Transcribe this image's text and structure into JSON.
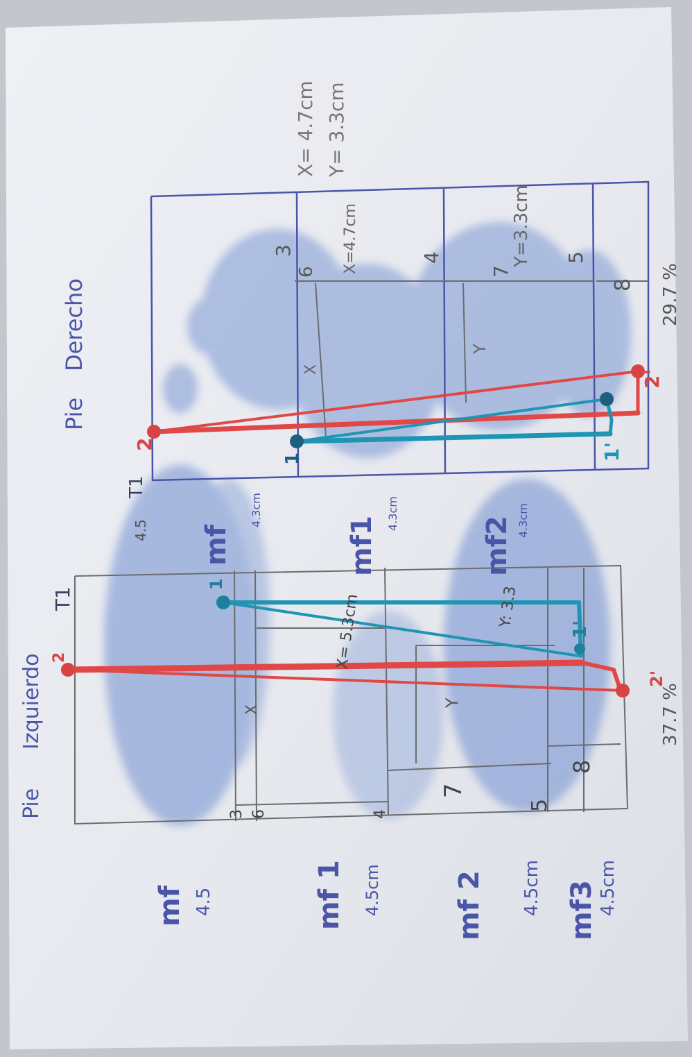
{
  "labels": {
    "left_title_pie": "Pie",
    "left_title_side": "Izquierdo",
    "right_title_pie": "Pie",
    "right_title_side": "Derecho",
    "t1_left": "T1",
    "t1_right": "T1",
    "top_value": "4.5",
    "left_percent": "37.7 %",
    "right_percent": "29.7 %",
    "xy_right": "X= 4.7cm",
    "y_right": "Y= 3.3cm",
    "xy_right_mid": "X=4.7cm",
    "y_right_mid": "Y=3.3cm",
    "left_hyp": "X= 5.3cm",
    "left_y": "Y: 3.3",
    "x_letter": "X",
    "y_letter": "Y"
  },
  "left_measures": [
    {
      "name": "mf",
      "value": "4.5"
    },
    {
      "name": "mf 1",
      "value": "4.5cm"
    },
    {
      "name": "mf 2",
      "value": "4.5cm"
    },
    {
      "name": "mf3",
      "value": "4.5cm"
    }
  ],
  "right_measures": [
    {
      "name": "mf",
      "value": "4.3cm"
    },
    {
      "name": "mf1",
      "value": "4.3cm"
    },
    {
      "name": "mf2",
      "value": "4.3cm"
    }
  ],
  "left_grid_nums": [
    "3",
    "6",
    "4",
    "7",
    "5",
    "8"
  ],
  "right_grid_nums": [
    "3",
    "6",
    "4",
    "7",
    "5",
    "8"
  ],
  "points": {
    "left": [
      "2",
      "1",
      "1'",
      "2'"
    ],
    "right": [
      "2",
      "1",
      "1'",
      "2'"
    ]
  },
  "colors": {
    "ink_blue": "#4a55a8",
    "print_blue": "#6f8fd0",
    "red": "#e04848",
    "teal": "#1f95b4",
    "pencil": "#6a6d70",
    "paper": "#e9eaf0"
  }
}
